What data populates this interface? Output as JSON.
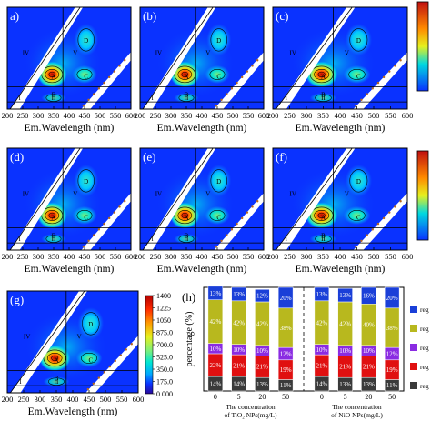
{
  "figure": {
    "panel_letters": [
      "a)",
      "(b)",
      "(c)",
      "(d)",
      "(e)",
      "(f)",
      "(g)",
      "(h)"
    ],
    "xlabel": "Em.Wavelength (nm)",
    "x_ticks": [
      200,
      250,
      300,
      350,
      400,
      450,
      500,
      550,
      600
    ],
    "region_labels": [
      "I",
      "II",
      "III",
      "IV",
      "V",
      "A",
      "B",
      "C",
      "D"
    ]
  },
  "colorbar": {
    "ticks": [
      "1400",
      "1225",
      "1050",
      "875.0",
      "700.0",
      "525.0",
      "350.0",
      "175.0",
      "0.000"
    ],
    "colors": [
      "#2b0a9a",
      "#0a32ff",
      "#00a8ff",
      "#00e6d2",
      "#7df07a",
      "#e6f01e",
      "#ff9a00",
      "#ff2a00",
      "#b40000"
    ]
  },
  "chart_data": {
    "type": "bar",
    "subtype": "stacked-percent",
    "ylabel": "percentage (%)",
    "ylim": [
      0,
      100
    ],
    "groups": [
      {
        "label_line1": "The concentration",
        "label_line2": "of TiO₂ NPs(mg/L)",
        "categories": [
          "0",
          "5",
          "20",
          "50"
        ]
      },
      {
        "label_line1": "The concentration",
        "label_line2": "of NiO NPs(mg/L)",
        "categories": [
          "0",
          "5",
          "20",
          "50"
        ]
      }
    ],
    "series": [
      {
        "name": "reg",
        "color": "#3a3a3a",
        "values": [
          14,
          14,
          13,
          11,
          14,
          13,
          13,
          11
        ]
      },
      {
        "name": "reg",
        "color": "#e01010",
        "values": [
          22,
          21,
          21,
          19,
          21,
          21,
          21,
          19
        ]
      },
      {
        "name": "reg",
        "color": "#8a2be2",
        "values": [
          10,
          10,
          10,
          12,
          10,
          10,
          10,
          12
        ]
      },
      {
        "name": "reg",
        "color": "#b8b81e",
        "values": [
          42,
          42,
          42,
          38,
          42,
          42,
          40,
          38
        ]
      },
      {
        "name": "reg",
        "color": "#1a3fd8",
        "values": [
          13,
          13,
          12,
          20,
          13,
          13,
          16,
          20
        ]
      }
    ],
    "separator": "dashed"
  }
}
